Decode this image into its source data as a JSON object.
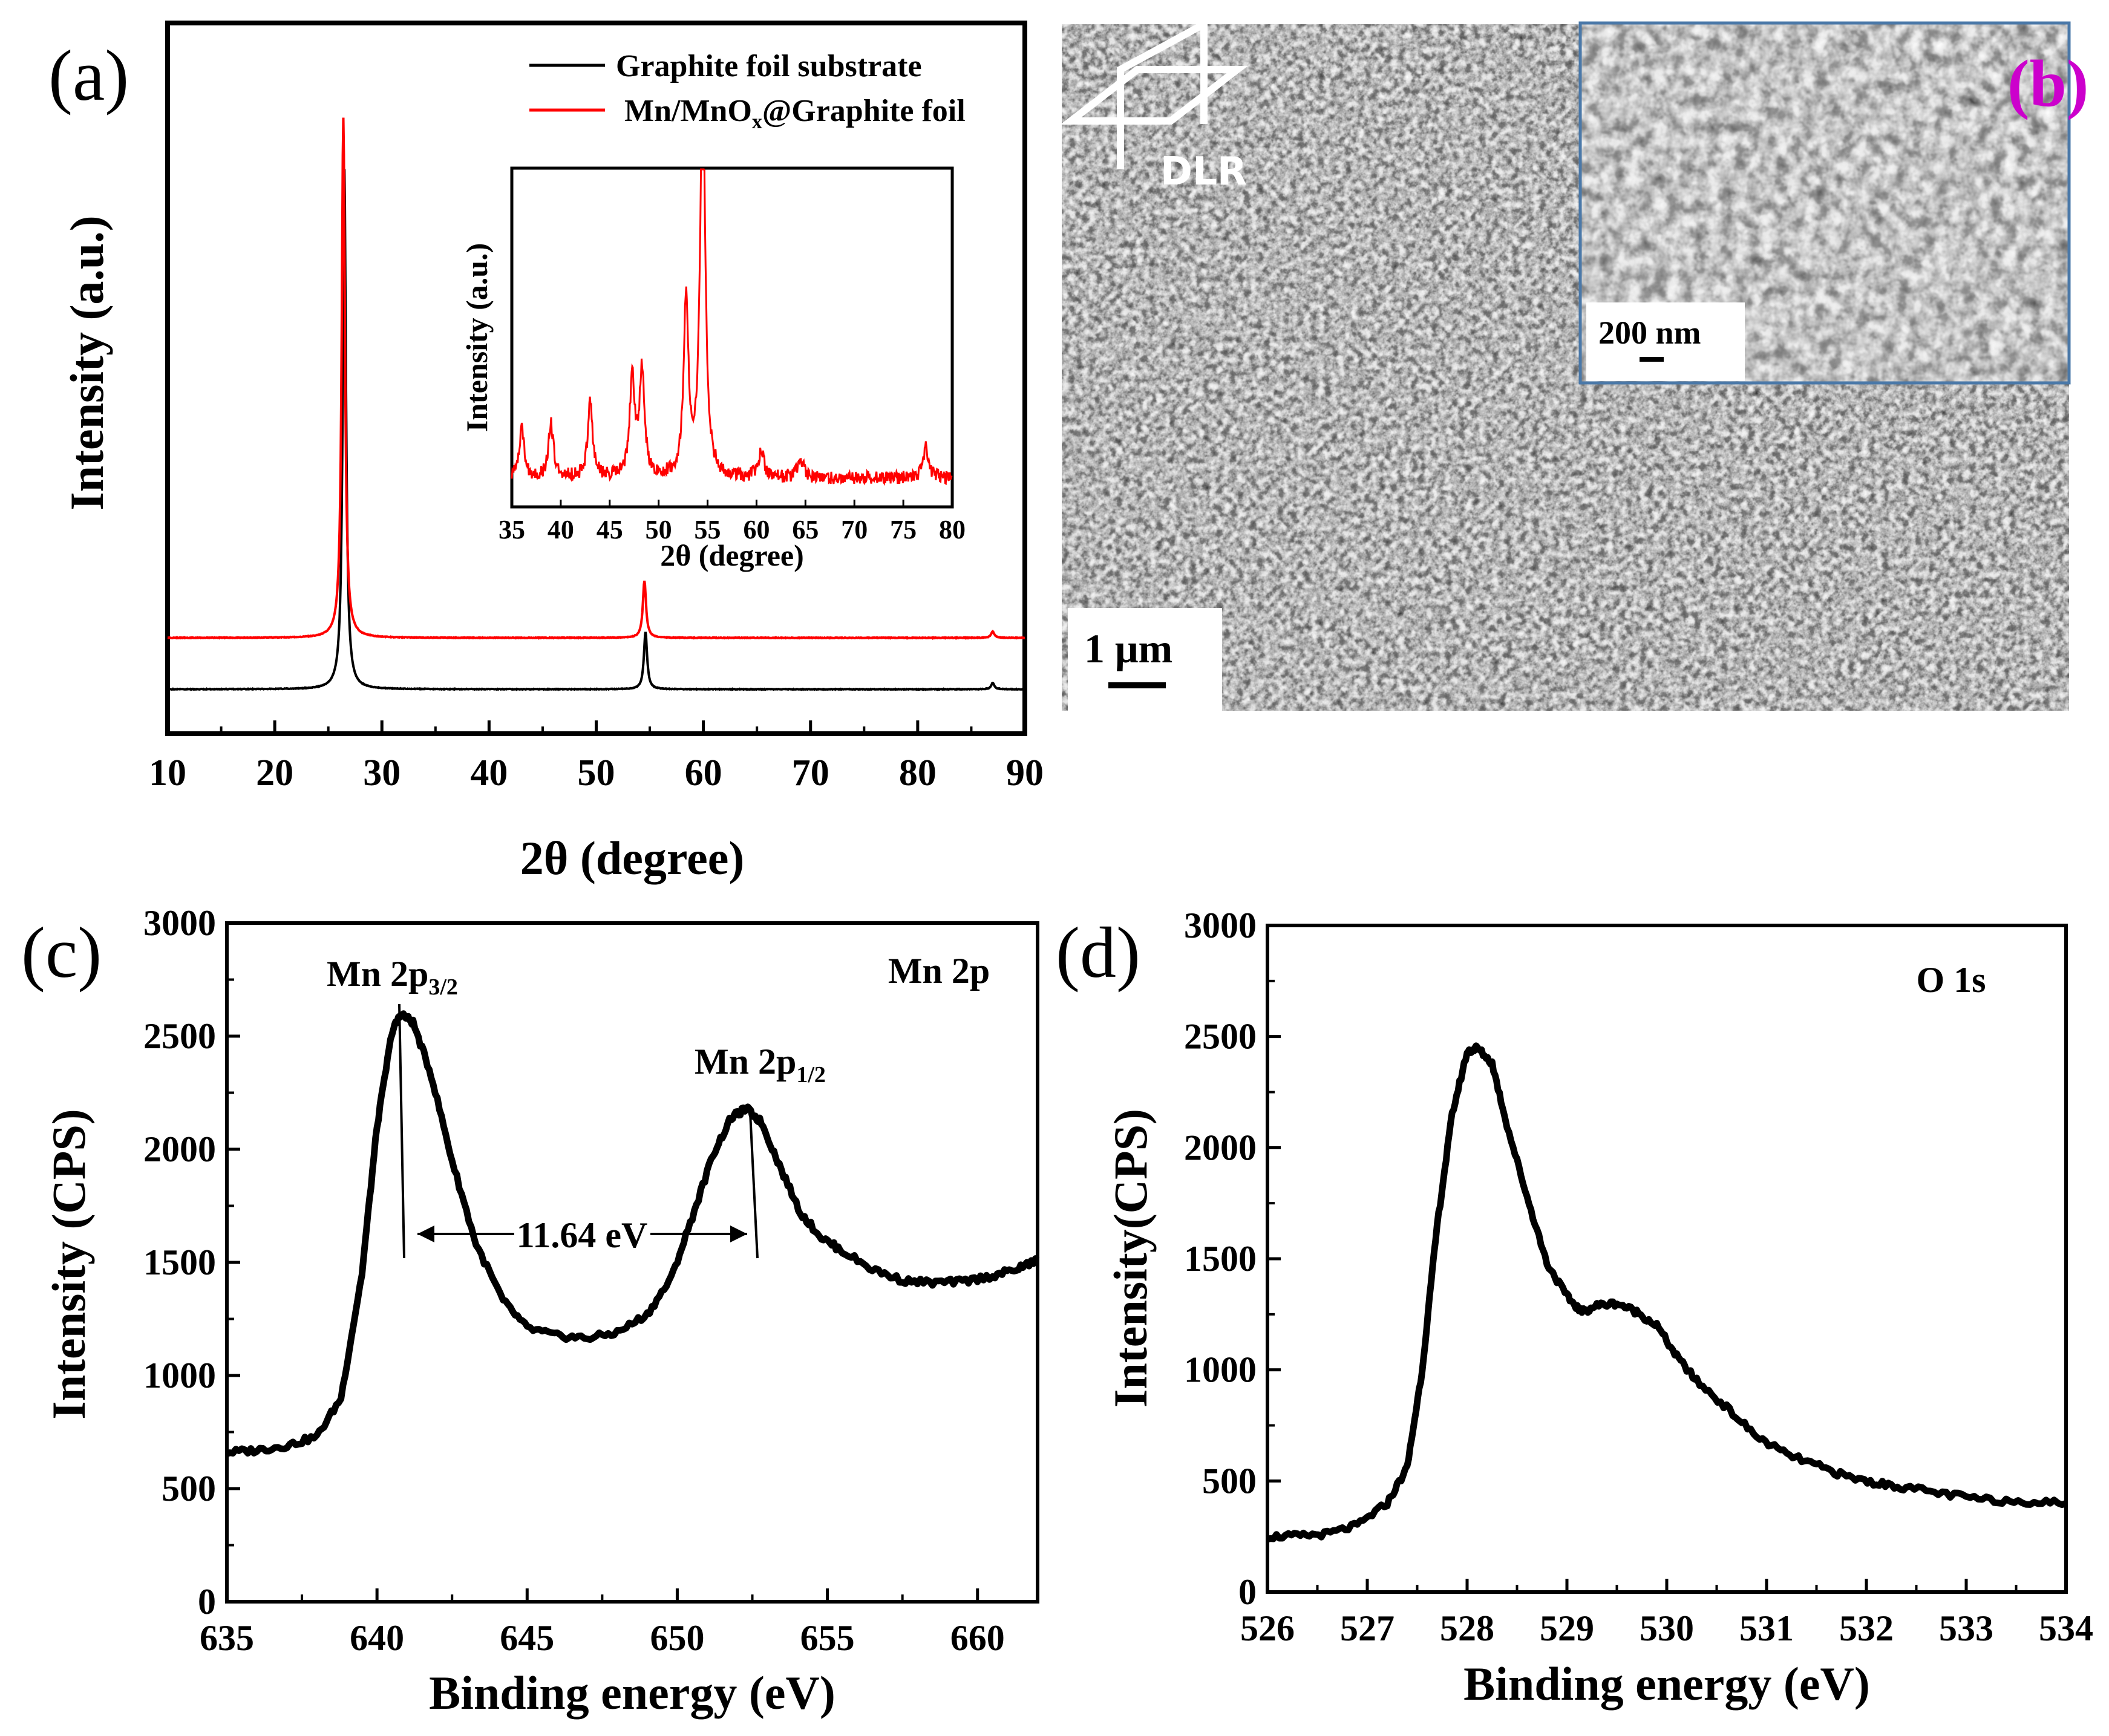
{
  "colors": {
    "graphite": "#000000",
    "mnox": "#ff0000",
    "panel_b_label": "#cc00cc",
    "inset_border": "#4a78a8"
  },
  "chart_data": [
    {
      "panel": "(a)",
      "type": "line",
      "xlabel": "2θ (degree)",
      "ylabel": "Intensity (a.u.)",
      "xlim": [
        10,
        90
      ],
      "xticks": [
        "10",
        "20",
        "30",
        "40",
        "50",
        "60",
        "70",
        "80",
        "90"
      ],
      "legend_position": "top-right",
      "series": [
        {
          "name": "Graphite foil substrate",
          "color": "#000000",
          "offset": 0.0,
          "peaks": [
            {
              "x": 26.5,
              "height": 1.0
            },
            {
              "x": 54.6,
              "height": 0.11
            },
            {
              "x": 87.0,
              "height": 0.012
            }
          ]
        },
        {
          "name": "Mn/MnOx@Graphite foil",
          "color": "#ff0000",
          "offset": 0.1,
          "peaks": [
            {
              "x": 26.4,
              "height": 1.0
            },
            {
              "x": 54.5,
              "height": 0.11
            },
            {
              "x": 87.0,
              "height": 0.012
            }
          ]
        }
      ],
      "legend_entries": [
        "Graphite foil substrate",
        "Mn/MnO",
        "x",
        "@Graphite foil"
      ],
      "inset": {
        "xlabel": "2θ (degree)",
        "ylabel": "Intensity (a.u.)",
        "xlim": [
          35,
          80
        ],
        "xticks": [
          "35",
          "40",
          "45",
          "50",
          "55",
          "60",
          "65",
          "70",
          "75",
          "80"
        ],
        "color": "#ff0000",
        "peaks": [
          {
            "x": 36.0,
            "height": 0.12
          },
          {
            "x": 39.0,
            "height": 0.13
          },
          {
            "x": 43.0,
            "height": 0.18
          },
          {
            "x": 47.3,
            "height": 0.24
          },
          {
            "x": 48.3,
            "height": 0.26
          },
          {
            "x": 52.8,
            "height": 0.42
          },
          {
            "x": 54.5,
            "height": 1.0
          },
          {
            "x": 60.5,
            "height": 0.07
          },
          {
            "x": 64.5,
            "height": 0.05
          },
          {
            "x": 77.3,
            "height": 0.08
          }
        ]
      }
    },
    {
      "panel": "(c)",
      "type": "line",
      "title": "Mn 2p",
      "xlabel": "Binding energy (eV)",
      "ylabel": "Intensity (CPS)",
      "xlim": [
        635,
        662
      ],
      "ylim": [
        0,
        3000
      ],
      "xticks": [
        "635",
        "640",
        "645",
        "650",
        "655",
        "660"
      ],
      "yticks": [
        "0",
        "500",
        "1000",
        "1500",
        "2000",
        "2500",
        "3000"
      ],
      "x": [
        635,
        636,
        637,
        638,
        638.8,
        639.5,
        640.0,
        640.5,
        640.8,
        641.2,
        641.8,
        642.5,
        643.3,
        644.2,
        645,
        646,
        647,
        648,
        649,
        649.8,
        650.5,
        651.2,
        651.8,
        652.3,
        652.8,
        653.4,
        654.1,
        654.8,
        655.5,
        656.5,
        657.5,
        658.5,
        659.5,
        660.5,
        661.3,
        662
      ],
      "y": [
        660,
        670,
        690,
        730,
        900,
        1450,
        2100,
        2520,
        2600,
        2560,
        2330,
        1950,
        1580,
        1330,
        1210,
        1175,
        1165,
        1190,
        1270,
        1430,
        1700,
        1980,
        2140,
        2180,
        2120,
        1930,
        1720,
        1610,
        1550,
        1470,
        1420,
        1410,
        1415,
        1440,
        1470,
        1510
      ],
      "annotations": [
        "Mn 2p",
        "3/2",
        "Mn 2p",
        "1/2",
        "11.64 eV"
      ]
    },
    {
      "panel": "(d)",
      "type": "line",
      "title": "O 1s",
      "xlabel": "Binding energy (eV)",
      "ylabel": "Intensity(CPS)",
      "xlim": [
        526,
        534
      ],
      "ylim": [
        0,
        3000
      ],
      "xticks": [
        "526",
        "527",
        "528",
        "529",
        "530",
        "531",
        "532",
        "533",
        "534"
      ],
      "yticks": [
        "0",
        "500",
        "1000",
        "1500",
        "2000",
        "2500",
        "3000"
      ],
      "x": [
        526,
        526.3,
        526.6,
        526.9,
        527.2,
        527.4,
        527.55,
        527.7,
        527.85,
        528.0,
        528.1,
        528.25,
        528.4,
        528.6,
        528.8,
        529.0,
        529.15,
        529.3,
        529.5,
        529.7,
        529.9,
        530.1,
        530.3,
        530.6,
        530.9,
        531.2,
        531.5,
        531.8,
        532.1,
        532.4,
        532.8,
        533.2,
        533.6,
        534.0
      ],
      "y": [
        250,
        252,
        262,
        300,
        400,
        560,
        1000,
        1650,
        2150,
        2430,
        2450,
        2380,
        2100,
        1780,
        1480,
        1330,
        1260,
        1290,
        1300,
        1260,
        1200,
        1060,
        950,
        830,
        700,
        620,
        570,
        520,
        490,
        470,
        440,
        415,
        408,
        400
      ]
    }
  ],
  "panel_labels": {
    "a": "(a)",
    "b": "(b)",
    "c": "(c)",
    "d": "(d)"
  },
  "sem": {
    "scale_main": "1 μm",
    "scale_inset": "200 nm",
    "logo": "DLR"
  }
}
